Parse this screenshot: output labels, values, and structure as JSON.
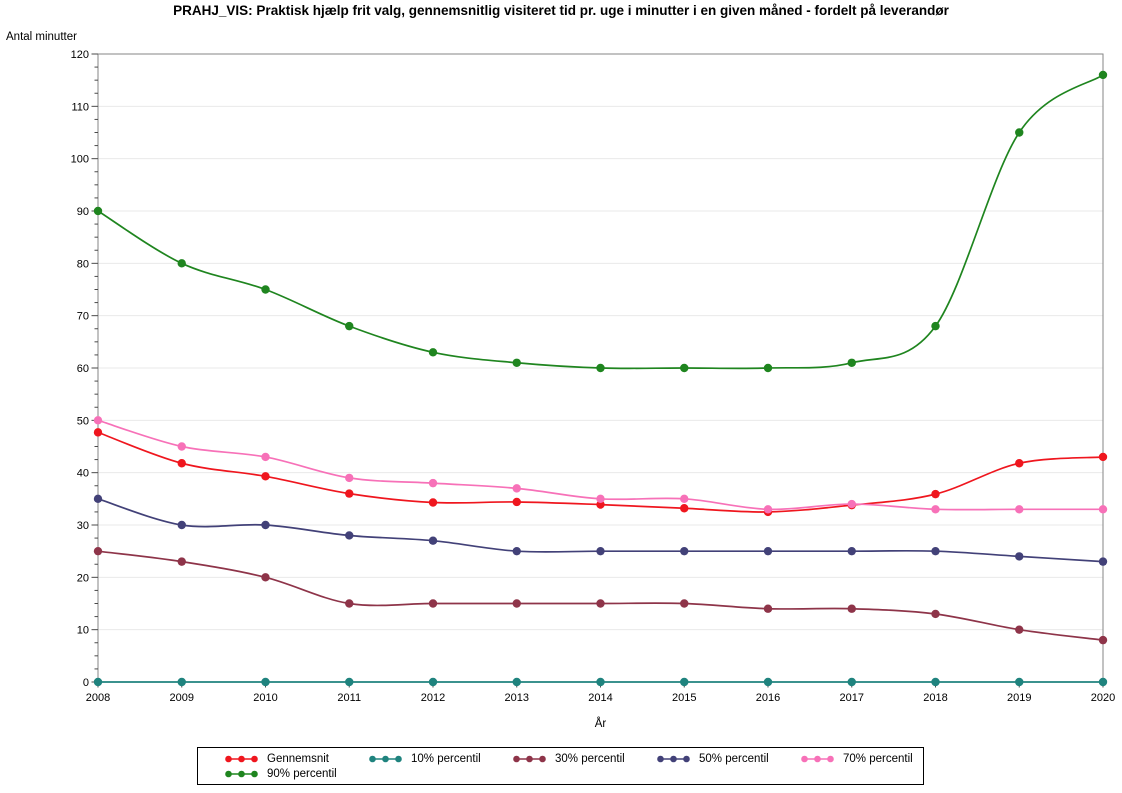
{
  "page": {
    "background": "#ffffff"
  },
  "chart_data": {
    "type": "line",
    "title": "PRAHJ_VIS: Praktisk hjælp frit valg, gennemsnitlig visiteret tid pr. uge i minutter i en given måned - fordelt på leverandør",
    "xlabel": "År",
    "ylabel": "Antal minutter",
    "categories": [
      "2008",
      "2009",
      "2010",
      "2011",
      "2012",
      "2013",
      "2014",
      "2015",
      "2016",
      "2017",
      "2018",
      "2019",
      "2020"
    ],
    "ylim": [
      0,
      120
    ],
    "yticks": [
      0,
      10,
      20,
      30,
      40,
      50,
      60,
      70,
      80,
      90,
      100,
      110,
      120
    ],
    "y_minor_step": 2.5,
    "grid": true,
    "legend_position": "bottom",
    "colors": {
      "grid": "#e9e9e9",
      "frame": "#868686",
      "tick": "#4a4a4a",
      "text": "#000000"
    },
    "series": [
      {
        "name": "Gennemsnit",
        "color": "#ef161e",
        "values": [
          47.7,
          41.8,
          39.3,
          36,
          34.3,
          34.4,
          33.9,
          33.2,
          32.5,
          33.8,
          35.9,
          41.8,
          43
        ]
      },
      {
        "name": "10% percentil",
        "color": "#1f837e",
        "values": [
          0,
          0,
          0,
          0,
          0,
          0,
          0,
          0,
          0,
          0,
          0,
          0,
          0
        ]
      },
      {
        "name": "30% percentil",
        "color": "#8e3449",
        "values": [
          25,
          23,
          20,
          15,
          15,
          15,
          15,
          15,
          14,
          14,
          13,
          10,
          8
        ]
      },
      {
        "name": "50% percentil",
        "color": "#424178",
        "values": [
          35,
          30,
          30,
          28,
          27,
          25,
          25,
          25,
          25,
          25,
          25,
          24,
          23
        ]
      },
      {
        "name": "70% percentil",
        "color": "#f771b8",
        "values": [
          50,
          45,
          43,
          39,
          38,
          37,
          35,
          35,
          33,
          34,
          33,
          33,
          33
        ]
      },
      {
        "name": "90% percentil",
        "color": "#1f851f",
        "values": [
          90,
          80,
          75,
          68,
          63,
          61,
          60,
          60,
          60,
          61,
          68,
          105,
          116
        ]
      }
    ]
  }
}
